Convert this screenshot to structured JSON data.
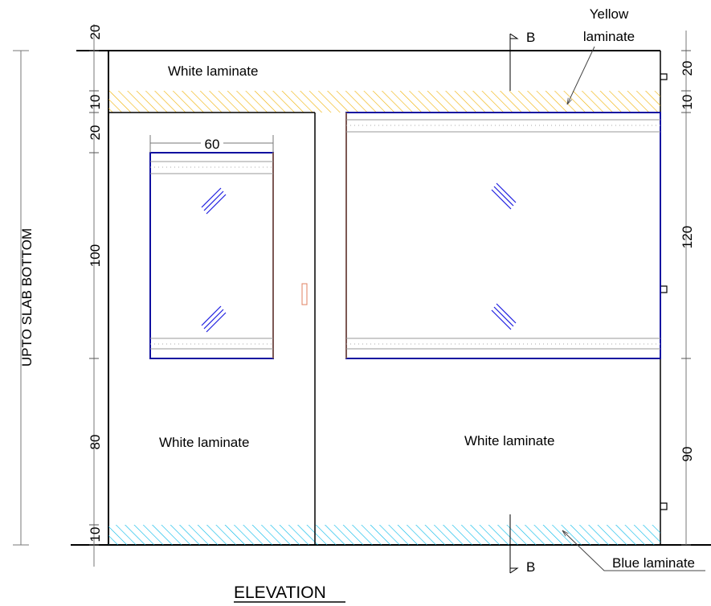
{
  "drawing": {
    "title": "ELEVATION",
    "colors": {
      "yellow_laminate": "#f0b000",
      "blue_laminate": "#00b8e8",
      "window_frame": "#1010a0",
      "glazing_marks": "#2020e0",
      "wood_edge": "#a0703a",
      "handle": "#e08060"
    },
    "labels": {
      "white_laminate_top": "White laminate",
      "white_laminate_door": "White laminate",
      "white_laminate_panel": "White laminate",
      "yellow_laminate_line1": "Yellow",
      "yellow_laminate_line2": "laminate",
      "blue_laminate": "Blue laminate",
      "upto_slab": "UPTO SLAB BOTTOM",
      "section_top": "B",
      "section_bottom": "B"
    },
    "left_dims": [
      "20",
      "10",
      "20",
      "100",
      "80",
      "10"
    ],
    "right_dims": [
      "20",
      "10",
      "120",
      "90"
    ],
    "window_width": "60"
  }
}
